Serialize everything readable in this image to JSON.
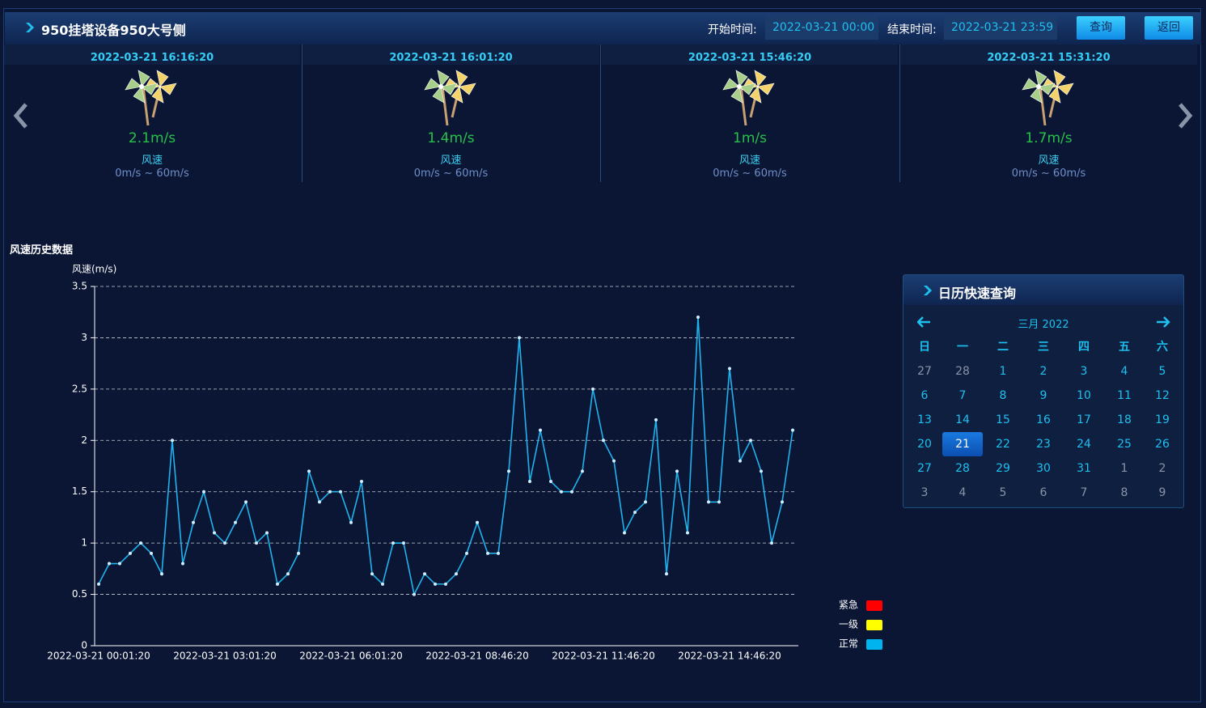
{
  "header": {
    "title": "950挂塔设备950大号侧",
    "start_label": "开始时间:",
    "start_value": "2022-03-21 00:00",
    "end_label": "结束时间:",
    "end_value": "2022-03-21 23:59",
    "query_button": "查询",
    "back_button": "返回"
  },
  "cards": [
    {
      "time": "2022-03-21 16:16:20",
      "speed": "2.1m/s",
      "name": "风速",
      "range": "0m/s ~ 60m/s"
    },
    {
      "time": "2022-03-21 16:01:20",
      "speed": "1.4m/s",
      "name": "风速",
      "range": "0m/s ~ 60m/s"
    },
    {
      "time": "2022-03-21 15:46:20",
      "speed": "1m/s",
      "name": "风速",
      "range": "0m/s ~ 60m/s"
    },
    {
      "time": "2022-03-21 15:31:20",
      "speed": "1.7m/s",
      "name": "风速",
      "range": "0m/s ~ 60m/s"
    }
  ],
  "chart_data": {
    "type": "line",
    "title": "风速历史数据",
    "y_label": "风速(m/s)",
    "color": "#1fb3ee",
    "categories": [
      "2022-03-21 00:01:20",
      null,
      null,
      null,
      null,
      null,
      null,
      null,
      null,
      null,
      null,
      null,
      "2022-03-21 03:01:20",
      null,
      null,
      null,
      null,
      null,
      null,
      null,
      null,
      null,
      null,
      null,
      "2022-03-21 06:01:20",
      null,
      null,
      null,
      null,
      null,
      null,
      null,
      null,
      null,
      null,
      null,
      "2022-03-21 08:46:20",
      null,
      null,
      null,
      null,
      null,
      null,
      null,
      null,
      null,
      null,
      null,
      "2022-03-21 11:46:20",
      null,
      null,
      null,
      null,
      null,
      null,
      null,
      null,
      null,
      null,
      null,
      "2022-03-21 14:46:20",
      null,
      null,
      null,
      null,
      null,
      null
    ],
    "values": [
      0.6,
      0.8,
      0.8,
      0.9,
      1.0,
      0.9,
      0.7,
      2.0,
      0.8,
      1.2,
      1.5,
      1.1,
      1.0,
      1.2,
      1.4,
      1.0,
      1.1,
      0.6,
      0.7,
      0.9,
      1.7,
      1.4,
      1.5,
      1.5,
      1.2,
      1.6,
      0.7,
      0.6,
      1.0,
      1.0,
      0.5,
      0.7,
      0.6,
      0.6,
      0.7,
      0.9,
      1.2,
      0.9,
      0.9,
      1.7,
      3.0,
      1.6,
      2.1,
      1.6,
      1.5,
      1.5,
      1.7,
      2.5,
      2.0,
      1.8,
      1.1,
      1.3,
      1.4,
      2.2,
      0.7,
      1.7,
      1.1,
      3.2,
      1.4,
      1.4,
      2.7,
      1.8,
      2.0,
      1.7,
      1.0,
      1.4,
      2.1
    ],
    "ylim": [
      0,
      3.5
    ],
    "yticks": [
      0,
      0.5,
      1,
      1.5,
      2,
      2.5,
      3,
      3.5
    ],
    "grid": true,
    "status_legend": [
      {
        "name": "紧急",
        "color": "#ff0000"
      },
      {
        "name": "一级",
        "color": "#ffff00"
      },
      {
        "name": "正常",
        "color": "#00b4f0"
      }
    ]
  },
  "calendar": {
    "title": "日历快速查询",
    "month": "三月 2022",
    "weekdays": [
      "日",
      "一",
      "二",
      "三",
      "四",
      "五",
      "六"
    ],
    "weeks": [
      [
        27,
        28,
        1,
        2,
        3,
        4,
        5
      ],
      [
        6,
        7,
        8,
        9,
        10,
        11,
        12
      ],
      [
        13,
        14,
        15,
        16,
        17,
        18,
        19
      ],
      [
        20,
        21,
        22,
        23,
        24,
        25,
        26
      ],
      [
        27,
        28,
        29,
        30,
        31,
        1,
        2
      ],
      [
        3,
        4,
        5,
        6,
        7,
        8,
        9
      ]
    ],
    "selected_day": 21
  }
}
